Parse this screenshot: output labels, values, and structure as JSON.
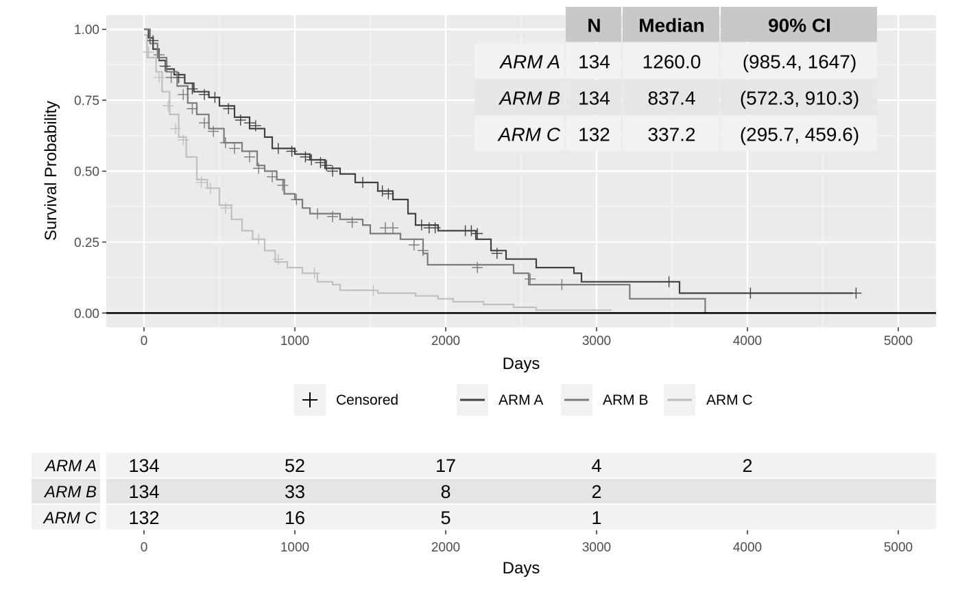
{
  "chart_data": [
    {
      "type": "line",
      "subtype": "kaplan-meier",
      "xlabel": "Days",
      "ylabel": "Survival Probability",
      "xlim": [
        -250,
        5250
      ],
      "ylim": [
        -0.05,
        1.05
      ],
      "x_ticks": [
        0,
        1000,
        2000,
        3000,
        4000,
        5000
      ],
      "y_ticks": [
        0,
        0.25,
        0.5,
        0.75,
        1.0
      ],
      "y_tick_labels": [
        "0.00",
        "0.25",
        "0.50",
        "0.75",
        "1.00"
      ],
      "grid": true,
      "reference_line_y": 0,
      "legend": {
        "placement": "bottom",
        "censored_label": "Censored",
        "entries": [
          "ARM A",
          "ARM B",
          "ARM C"
        ]
      },
      "series": [
        {
          "name": "ARM A",
          "color": "#404040",
          "steps": [
            [
              0,
              1.0
            ],
            [
              30,
              0.97
            ],
            [
              60,
              0.93
            ],
            [
              100,
              0.89
            ],
            [
              150,
              0.86
            ],
            [
              200,
              0.84
            ],
            [
              270,
              0.81
            ],
            [
              330,
              0.78
            ],
            [
              430,
              0.76
            ],
            [
              500,
              0.73
            ],
            [
              600,
              0.69
            ],
            [
              700,
              0.65
            ],
            [
              800,
              0.62
            ],
            [
              850,
              0.58
            ],
            [
              1000,
              0.56
            ],
            [
              1100,
              0.54
            ],
            [
              1200,
              0.51
            ],
            [
              1300,
              0.49
            ],
            [
              1400,
              0.46
            ],
            [
              1550,
              0.43
            ],
            [
              1650,
              0.4
            ],
            [
              1750,
              0.35
            ],
            [
              1800,
              0.31
            ],
            [
              1950,
              0.29
            ],
            [
              2100,
              0.29
            ],
            [
              2200,
              0.26
            ],
            [
              2300,
              0.22
            ],
            [
              2400,
              0.19
            ],
            [
              2600,
              0.16
            ],
            [
              2850,
              0.14
            ],
            [
              2900,
              0.11
            ],
            [
              3200,
              0.11
            ],
            [
              3550,
              0.07
            ],
            [
              4700,
              0.07
            ]
          ],
          "censored": [
            [
              60,
              0.96
            ],
            [
              140,
              0.87
            ],
            [
              230,
              0.83
            ],
            [
              320,
              0.79
            ],
            [
              400,
              0.77
            ],
            [
              470,
              0.76
            ],
            [
              560,
              0.72
            ],
            [
              640,
              0.68
            ],
            [
              700,
              0.67
            ],
            [
              740,
              0.66
            ],
            [
              890,
              0.58
            ],
            [
              980,
              0.57
            ],
            [
              1070,
              0.55
            ],
            [
              1110,
              0.54
            ],
            [
              1170,
              0.53
            ],
            [
              1210,
              0.52
            ],
            [
              1250,
              0.5
            ],
            [
              1450,
              0.46
            ],
            [
              1580,
              0.43
            ],
            [
              1620,
              0.42
            ],
            [
              1840,
              0.31
            ],
            [
              1890,
              0.3
            ],
            [
              1930,
              0.3
            ],
            [
              2130,
              0.29
            ],
            [
              2170,
              0.29
            ],
            [
              2210,
              0.28
            ],
            [
              2340,
              0.21
            ],
            [
              3480,
              0.11
            ],
            [
              4020,
              0.07
            ],
            [
              4720,
              0.07
            ]
          ]
        },
        {
          "name": "ARM B",
          "color": "#7a7a7a",
          "steps": [
            [
              0,
              1.0
            ],
            [
              40,
              0.95
            ],
            [
              90,
              0.9
            ],
            [
              150,
              0.85
            ],
            [
              220,
              0.8
            ],
            [
              290,
              0.74
            ],
            [
              350,
              0.7
            ],
            [
              430,
              0.65
            ],
            [
              530,
              0.6
            ],
            [
              650,
              0.57
            ],
            [
              750,
              0.52
            ],
            [
              800,
              0.5
            ],
            [
              880,
              0.47
            ],
            [
              930,
              0.42
            ],
            [
              1000,
              0.4
            ],
            [
              1050,
              0.37
            ],
            [
              1100,
              0.35
            ],
            [
              1300,
              0.33
            ],
            [
              1450,
              0.31
            ],
            [
              1500,
              0.31
            ],
            [
              1500,
              0.28
            ],
            [
              1700,
              0.28
            ],
            [
              1700,
              0.26
            ],
            [
              1850,
              0.21
            ],
            [
              1880,
              0.17
            ],
            [
              2100,
              0.17
            ],
            [
              2450,
              0.14
            ],
            [
              2550,
              0.1
            ],
            [
              3200,
              0.1
            ],
            [
              3220,
              0.05
            ],
            [
              3720,
              0.05
            ],
            [
              3720,
              0.0
            ]
          ],
          "censored": [
            [
              100,
              0.91
            ],
            [
              180,
              0.83
            ],
            [
              260,
              0.77
            ],
            [
              320,
              0.72
            ],
            [
              400,
              0.67
            ],
            [
              460,
              0.64
            ],
            [
              540,
              0.6
            ],
            [
              600,
              0.58
            ],
            [
              700,
              0.55
            ],
            [
              760,
              0.51
            ],
            [
              850,
              0.48
            ],
            [
              920,
              0.45
            ],
            [
              1010,
              0.4
            ],
            [
              1150,
              0.35
            ],
            [
              1250,
              0.34
            ],
            [
              1380,
              0.32
            ],
            [
              1600,
              0.3
            ],
            [
              1650,
              0.3
            ],
            [
              1790,
              0.24
            ],
            [
              1850,
              0.22
            ],
            [
              2210,
              0.16
            ],
            [
              2560,
              0.12
            ],
            [
              2770,
              0.1
            ]
          ]
        },
        {
          "name": "ARM C",
          "color": "#bfbfbf",
          "steps": [
            [
              0,
              0.98
            ],
            [
              20,
              0.9
            ],
            [
              80,
              0.85
            ],
            [
              120,
              0.78
            ],
            [
              170,
              0.7
            ],
            [
              230,
              0.62
            ],
            [
              280,
              0.55
            ],
            [
              350,
              0.47
            ],
            [
              420,
              0.44
            ],
            [
              500,
              0.38
            ],
            [
              580,
              0.33
            ],
            [
              650,
              0.29
            ],
            [
              720,
              0.26
            ],
            [
              800,
              0.22
            ],
            [
              870,
              0.18
            ],
            [
              950,
              0.16
            ],
            [
              1050,
              0.14
            ],
            [
              1150,
              0.11
            ],
            [
              1250,
              0.1
            ],
            [
              1300,
              0.08
            ],
            [
              1550,
              0.08
            ],
            [
              1550,
              0.07
            ],
            [
              1800,
              0.07
            ],
            [
              1800,
              0.06
            ],
            [
              1950,
              0.05
            ],
            [
              2050,
              0.04
            ],
            [
              2250,
              0.03
            ],
            [
              2450,
              0.02
            ],
            [
              2600,
              0.01
            ],
            [
              3100,
              0.01
            ]
          ],
          "censored": [
            [
              30,
              0.92
            ],
            [
              100,
              0.83
            ],
            [
              160,
              0.73
            ],
            [
              210,
              0.65
            ],
            [
              260,
              0.61
            ],
            [
              380,
              0.46
            ],
            [
              440,
              0.44
            ],
            [
              540,
              0.37
            ],
            [
              760,
              0.26
            ],
            [
              890,
              0.19
            ],
            [
              1130,
              0.14
            ],
            [
              1520,
              0.08
            ]
          ]
        }
      ],
      "summary_table": {
        "headers": [
          "N",
          "Median",
          "90% CI"
        ],
        "rows": [
          {
            "arm": "ARM A",
            "n": "134",
            "median": "1260.0",
            "ci": "(985.4, 1647)"
          },
          {
            "arm": "ARM B",
            "n": "134",
            "median": "837.4",
            "ci": "(572.3, 910.3)"
          },
          {
            "arm": "ARM C",
            "n": "132",
            "median": "337.2",
            "ci": "(295.7, 459.6)"
          }
        ]
      }
    },
    {
      "type": "table",
      "subtype": "number-at-risk",
      "xlabel": "Days",
      "x_ticks": [
        0,
        1000,
        2000,
        3000,
        4000,
        5000
      ],
      "rows": [
        {
          "arm": "ARM A",
          "values": [
            {
              "x": 0,
              "n": "134"
            },
            {
              "x": 1000,
              "n": "52"
            },
            {
              "x": 2000,
              "n": "17"
            },
            {
              "x": 3000,
              "n": "4"
            },
            {
              "x": 4000,
              "n": "2"
            }
          ]
        },
        {
          "arm": "ARM B",
          "values": [
            {
              "x": 0,
              "n": "134"
            },
            {
              "x": 1000,
              "n": "33"
            },
            {
              "x": 2000,
              "n": "8"
            },
            {
              "x": 3000,
              "n": "2"
            }
          ]
        },
        {
          "arm": "ARM C",
          "values": [
            {
              "x": 0,
              "n": "132"
            },
            {
              "x": 1000,
              "n": "16"
            },
            {
              "x": 2000,
              "n": "5"
            },
            {
              "x": 3000,
              "n": "1"
            }
          ]
        }
      ]
    }
  ]
}
